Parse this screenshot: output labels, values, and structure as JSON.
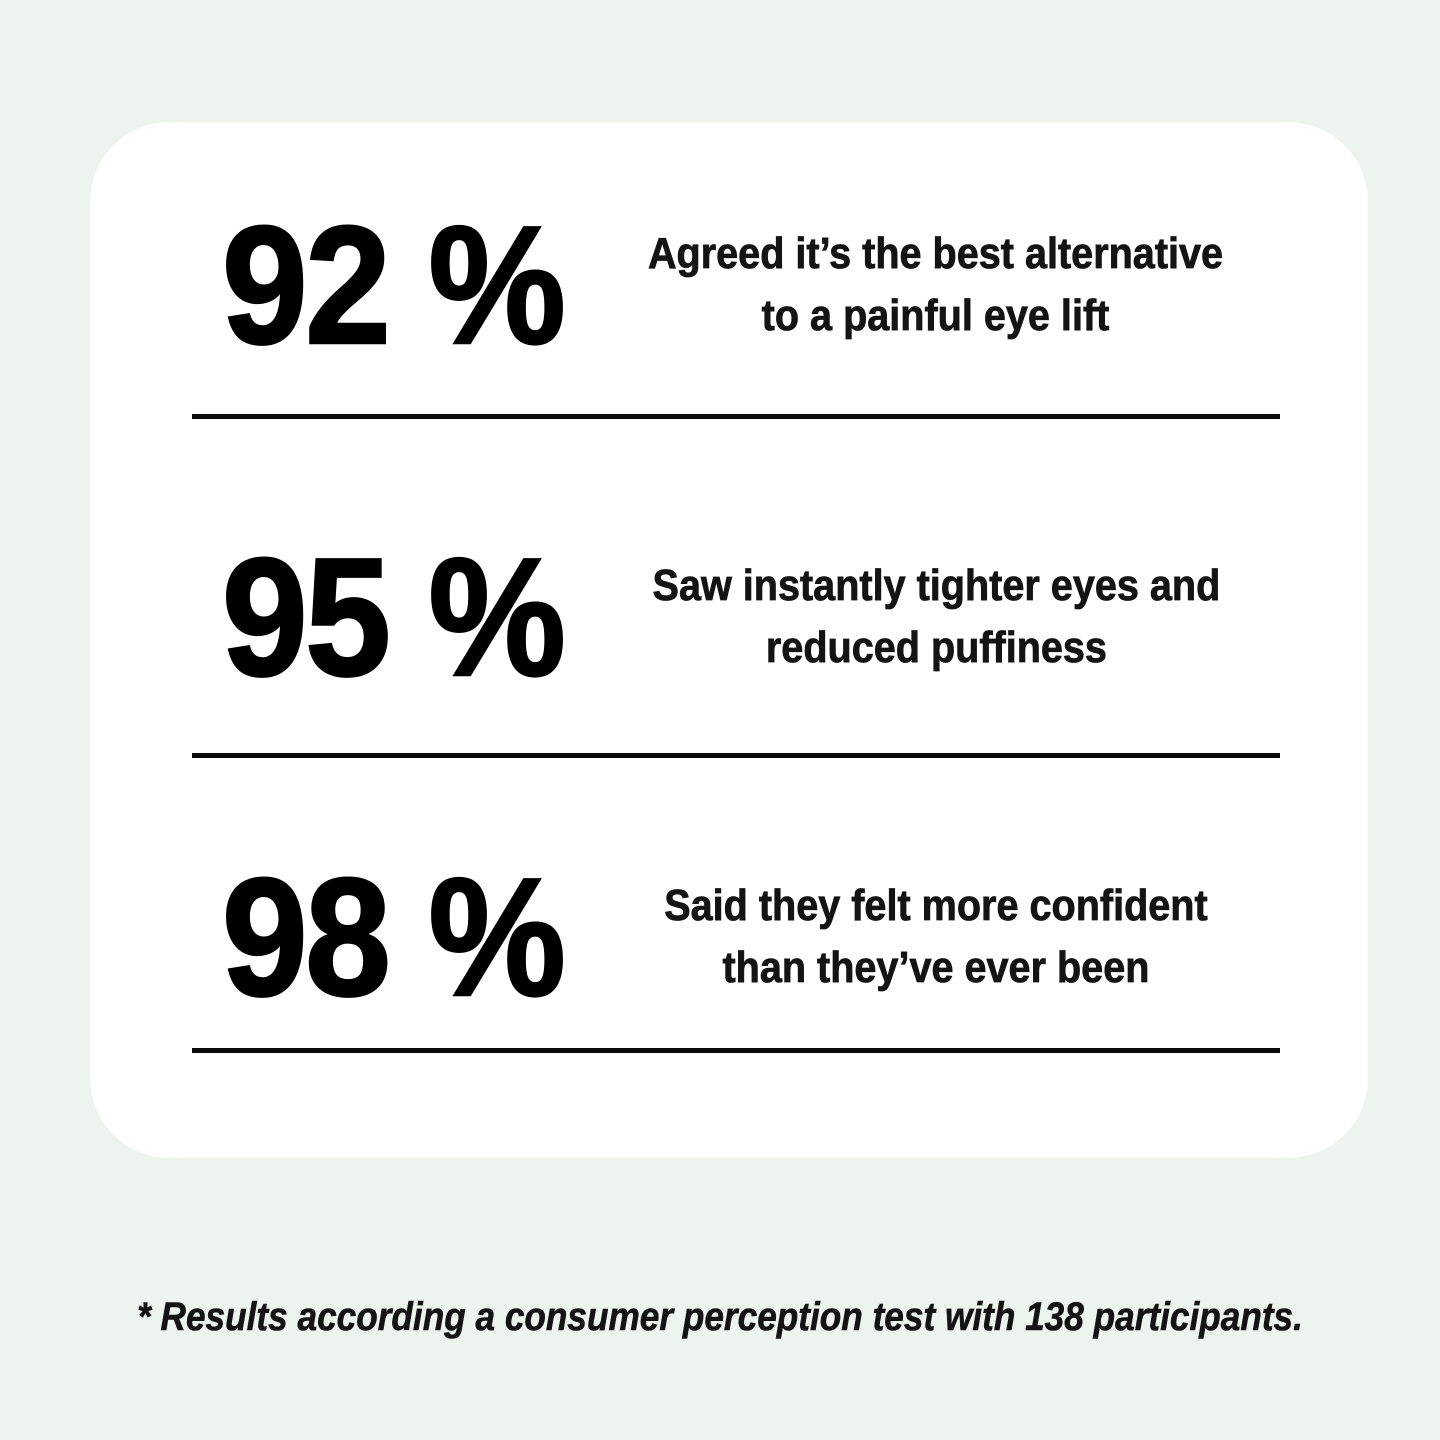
{
  "page": {
    "background_color": "#edf4ee",
    "card_color": "#ffffff",
    "text_color": "#141414",
    "divider_color": "#0d0d0d"
  },
  "stats": [
    {
      "value": "92 %",
      "line1": "Agreed it’s the best alternative",
      "line2": "to a painful eye lift"
    },
    {
      "value": "95 %",
      "line1": "Saw instantly tighter eyes and",
      "line2": "reduced puffiness"
    },
    {
      "value": "98 %",
      "line1": "Said they felt more confident",
      "line2": "than they’ve ever been"
    }
  ],
  "footnote": "* Results according a consumer perception test with 138 participants."
}
